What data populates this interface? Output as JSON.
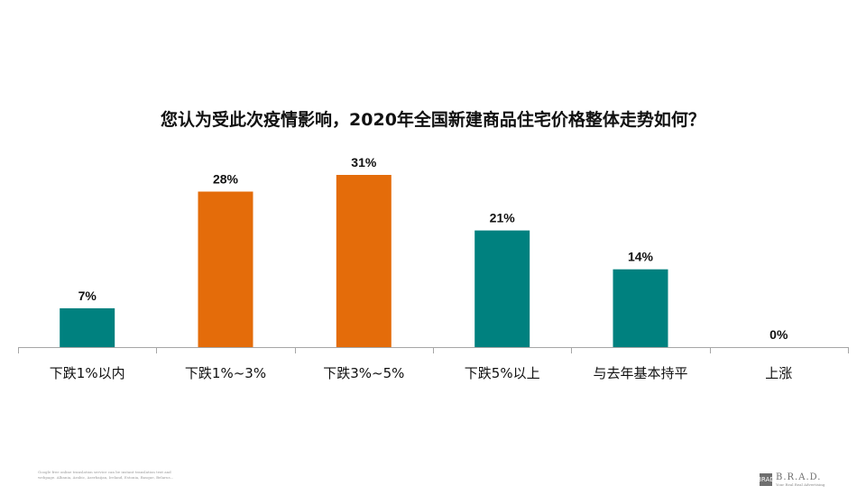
{
  "chart_data": {
    "type": "bar",
    "title": "您认为受此次疫情影响，2020年全国新建商品住宅价格整体走势如何？",
    "categories": [
      "下跌1%以内",
      "下跌1%~3%",
      "下跌3%~5%",
      "下跌5%以上",
      "与去年基本持平",
      "上涨"
    ],
    "values": [
      7,
      28,
      31,
      21,
      14,
      0
    ],
    "value_labels": [
      "7%",
      "28%",
      "31%",
      "21%",
      "14%",
      "0%"
    ],
    "bar_colors": [
      "#00817F",
      "#E46C0A",
      "#E46C0A",
      "#00817F",
      "#00817F",
      "#00817F"
    ],
    "ylim": [
      0,
      31
    ],
    "grid": false,
    "legend": "none",
    "xlabel": "",
    "ylabel": ""
  },
  "footnote": "Google free online translation service can be instant translation text and webpage. Albania, Arabic, Azerbaijan, Ireland, Estonia, Basque, Belarus...",
  "brand": {
    "logo_text": "BRAD",
    "name": "B.R.A.D.",
    "tagline": "Your Real Real Advertising"
  }
}
